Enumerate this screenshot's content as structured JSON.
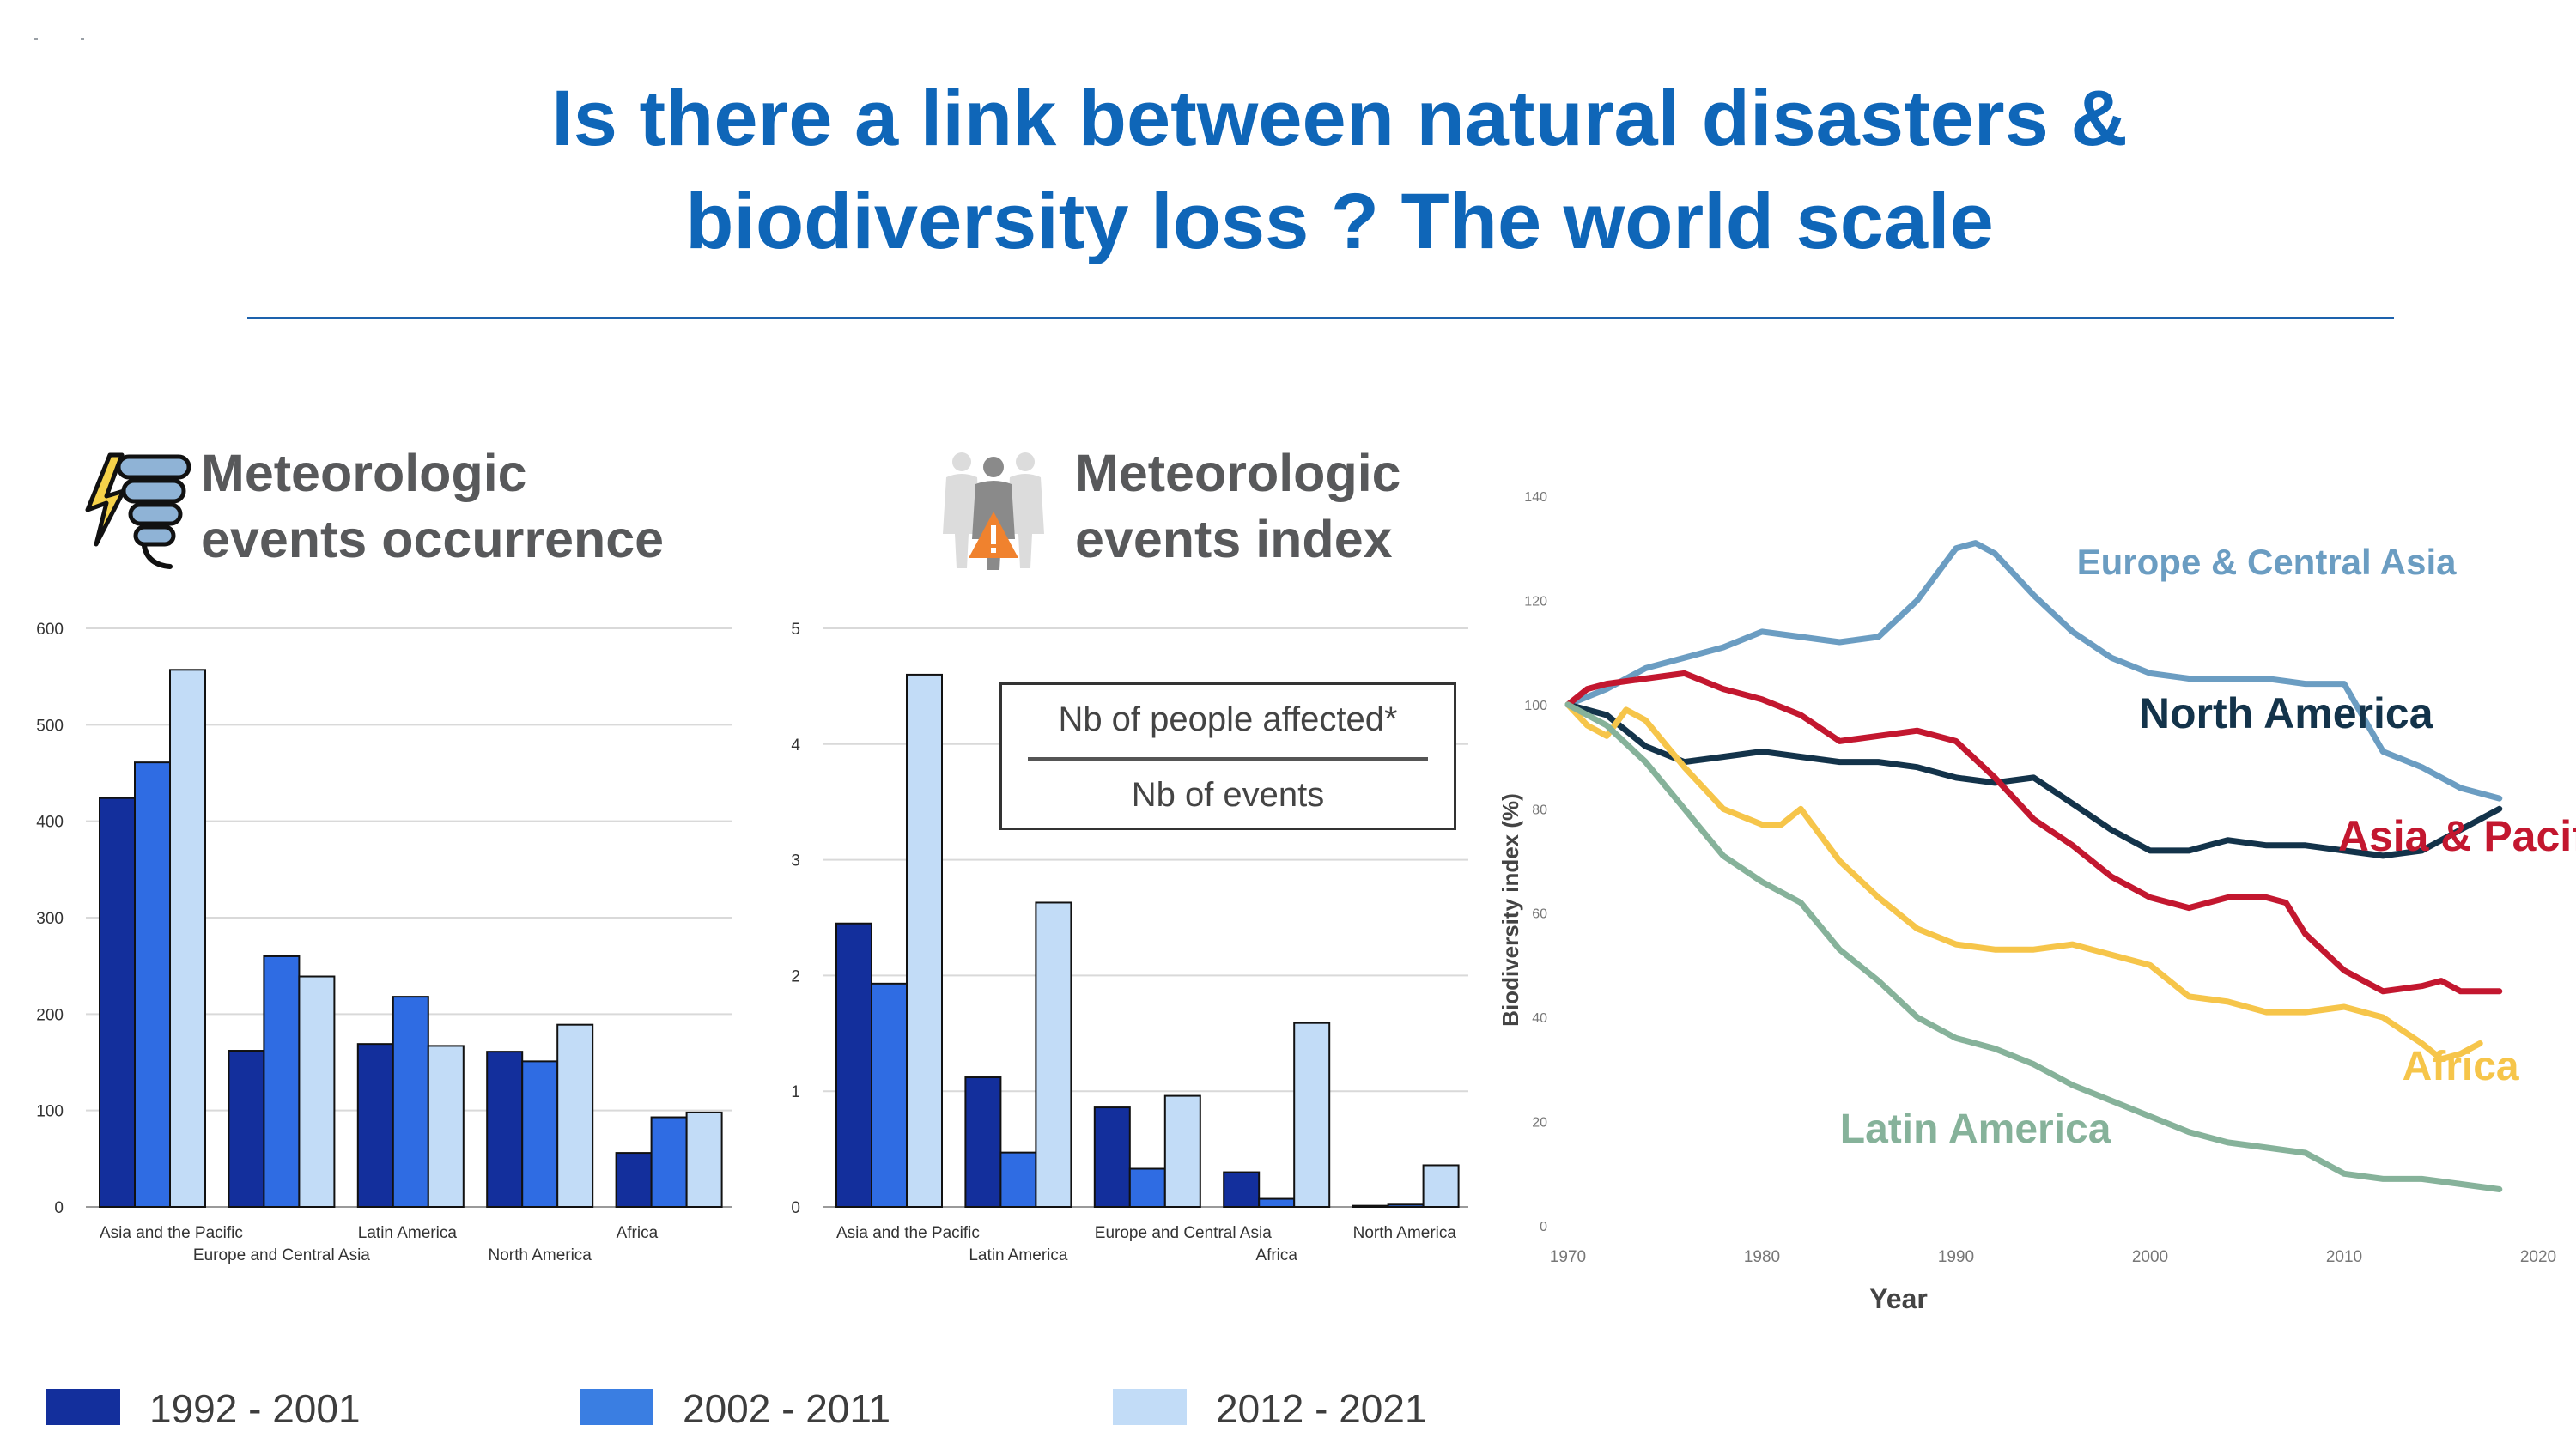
{
  "title": {
    "line1": "Is there a link between natural disasters &",
    "line2": "biodiversity loss ? The world scale"
  },
  "panels": {
    "occurrence_heading": [
      "Meteorologic",
      "events occurrence"
    ],
    "index_heading": [
      "Meteorologic",
      "events index"
    ],
    "occurrence_icon": "storm-tornado-icon",
    "index_icon": "affected-people-warning-icon"
  },
  "formula": {
    "numerator": "Nb of people affected*",
    "denominator": "Nb of events"
  },
  "colors": {
    "title": "#0f66b8",
    "period_1": "#132f9c",
    "period_2": "#2f6ce3",
    "period_3": "#c2dcf7"
  },
  "legend": [
    {
      "label": "1992 - 2001",
      "color": "#132f9c"
    },
    {
      "label": "2002 - 2011",
      "color": "#3a7ee2"
    },
    {
      "label": "2012 - 2021",
      "color": "#c2dcf7"
    }
  ],
  "chart_data": [
    {
      "type": "bar",
      "categories": [
        "Asia and the Pacific",
        "Europe and Central Asia",
        "Latin America",
        "North America",
        "Africa"
      ],
      "series": [
        {
          "name": "1992 - 2001",
          "values": [
            424,
            162,
            169,
            161,
            56
          ]
        },
        {
          "name": "2002 - 2011",
          "values": [
            461,
            260,
            218,
            151,
            93
          ]
        },
        {
          "name": "2012 - 2021",
          "values": [
            557,
            239,
            167,
            189,
            98
          ]
        }
      ],
      "ylim": [
        0,
        600
      ],
      "yticks": [
        0,
        100,
        200,
        300,
        400,
        500,
        600
      ],
      "grid": true,
      "xlabel": "",
      "ylabel": ""
    },
    {
      "type": "bar",
      "categories": [
        "Asia and the Pacific",
        "Latin America",
        "Europe and Central Asia",
        "Africa",
        "North America"
      ],
      "series": [
        {
          "name": "1992 - 2001",
          "values": [
            2.45,
            1.12,
            0.86,
            0.3,
            0.01
          ]
        },
        {
          "name": "2002 - 2011",
          "values": [
            1.93,
            0.47,
            0.33,
            0.07,
            0.02
          ]
        },
        {
          "name": "2012 - 2021",
          "values": [
            4.6,
            2.63,
            0.96,
            1.59,
            0.36
          ]
        }
      ],
      "ylim": [
        0,
        5
      ],
      "yticks": [
        0,
        1,
        2,
        3,
        4,
        5
      ],
      "grid": true,
      "xlabel": "",
      "ylabel": ""
    },
    {
      "type": "line",
      "xlabel": "Year",
      "ylabel": "Biodiversity index (%)",
      "xlim": [
        1970,
        2020
      ],
      "ylim": [
        0,
        140
      ],
      "xticks": [
        1970,
        1980,
        1990,
        2000,
        2010,
        2020
      ],
      "yticks": [
        0,
        20,
        40,
        60,
        80,
        100,
        120,
        140
      ],
      "grid": false,
      "series": [
        {
          "name": "Europe & Central Asia",
          "color": "#6b9dc2",
          "x": [
            1970,
            1972,
            1974,
            1976,
            1978,
            1980,
            1982,
            1984,
            1986,
            1988,
            1990,
            1991,
            1992,
            1994,
            1996,
            1998,
            2000,
            2002,
            2004,
            2006,
            2008,
            2009,
            2010,
            2012,
            2014,
            2016,
            2018
          ],
          "y": [
            100,
            103,
            107,
            109,
            111,
            114,
            113,
            112,
            113,
            120,
            130,
            131,
            129,
            121,
            114,
            109,
            106,
            105,
            105,
            105,
            104,
            104,
            104,
            91,
            88,
            84,
            82
          ]
        },
        {
          "name": "North America",
          "color": "#13334a",
          "x": [
            1970,
            1972,
            1974,
            1976,
            1978,
            1980,
            1982,
            1984,
            1986,
            1988,
            1990,
            1992,
            1994,
            1996,
            1998,
            2000,
            2002,
            2004,
            2006,
            2008,
            2010,
            2012,
            2014,
            2016,
            2018
          ],
          "y": [
            100,
            98,
            92,
            89,
            90,
            91,
            90,
            89,
            89,
            88,
            86,
            85,
            86,
            81,
            76,
            72,
            72,
            74,
            73,
            73,
            72,
            71,
            72,
            76,
            80
          ]
        },
        {
          "name": "Asia & Pacific",
          "color": "#c3172f",
          "x": [
            1970,
            1971,
            1972,
            1974,
            1976,
            1978,
            1980,
            1982,
            1984,
            1986,
            1988,
            1990,
            1992,
            1994,
            1996,
            1998,
            2000,
            2002,
            2004,
            2006,
            2007,
            2008,
            2010,
            2012,
            2014,
            2015,
            2016,
            2018
          ],
          "y": [
            100,
            103,
            104,
            105,
            106,
            103,
            101,
            98,
            93,
            94,
            95,
            93,
            86,
            78,
            73,
            67,
            63,
            61,
            63,
            63,
            62,
            56,
            49,
            45,
            46,
            47,
            45,
            45
          ]
        },
        {
          "name": "Africa",
          "color": "#f6c54a",
          "x": [
            1970,
            1971,
            1972,
            1973,
            1974,
            1976,
            1978,
            1980,
            1981,
            1982,
            1984,
            1986,
            1988,
            1990,
            1992,
            1994,
            1996,
            1998,
            2000,
            2002,
            2004,
            2006,
            2008,
            2010,
            2012,
            2014,
            2015,
            2016,
            2017
          ],
          "y": [
            100,
            96,
            94,
            99,
            97,
            88,
            80,
            77,
            77,
            80,
            70,
            63,
            57,
            54,
            53,
            53,
            54,
            52,
            50,
            44,
            43,
            41,
            41,
            42,
            40,
            35,
            32,
            33,
            35
          ]
        },
        {
          "name": "Latin America",
          "color": "#86b29a",
          "x": [
            1970,
            1972,
            1974,
            1976,
            1978,
            1980,
            1982,
            1984,
            1986,
            1988,
            1990,
            1992,
            1994,
            1996,
            1998,
            2000,
            2002,
            2004,
            2006,
            2008,
            2010,
            2012,
            2014,
            2016,
            2018
          ],
          "y": [
            100,
            96,
            89,
            80,
            71,
            66,
            62,
            53,
            47,
            40,
            36,
            34,
            31,
            27,
            24,
            21,
            18,
            16,
            15,
            14,
            10,
            9,
            9,
            8,
            7
          ]
        }
      ]
    }
  ]
}
